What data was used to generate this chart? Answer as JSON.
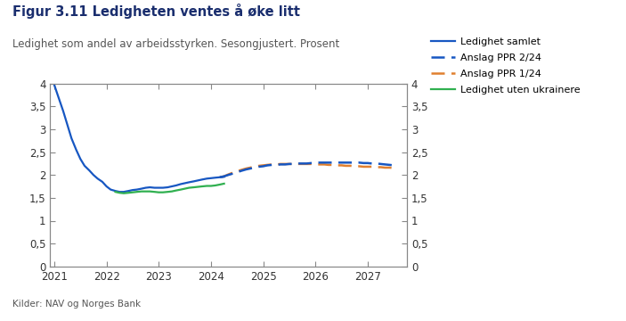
{
  "title": "Figur 3.11 Ledigheten ventes å øke litt",
  "subtitle": "Ledighet som andel av arbeidsstyrken. Sesongjustert. Prosent",
  "source": "Kilder: NAV og Norges Bank",
  "ylim": [
    0,
    4
  ],
  "yticks": [
    0,
    0.5,
    1,
    1.5,
    2,
    2.5,
    3,
    3.5,
    4
  ],
  "ytick_labels": [
    "0",
    "0,5",
    "1",
    "1,5",
    "2",
    "2,5",
    "3",
    "3,5",
    "4"
  ],
  "xlim_start": 2020.92,
  "xlim_end": 2027.75,
  "xtick_positions": [
    2021,
    2022,
    2023,
    2024,
    2025,
    2026,
    2027
  ],
  "ledighet_samlet_x": [
    2021.0,
    2021.08,
    2021.17,
    2021.25,
    2021.33,
    2021.42,
    2021.5,
    2021.58,
    2021.67,
    2021.75,
    2021.83,
    2021.92,
    2022.0,
    2022.08,
    2022.17,
    2022.25,
    2022.33,
    2022.42,
    2022.5,
    2022.58,
    2022.67,
    2022.75,
    2022.83,
    2022.92,
    2023.0,
    2023.08,
    2023.17,
    2023.25,
    2023.33,
    2023.42,
    2023.5,
    2023.58,
    2023.67,
    2023.75,
    2023.83,
    2023.92,
    2024.0,
    2024.08,
    2024.17,
    2024.25
  ],
  "ledighet_samlet_y": [
    3.97,
    3.7,
    3.4,
    3.1,
    2.8,
    2.55,
    2.35,
    2.2,
    2.1,
    2.0,
    1.92,
    1.85,
    1.75,
    1.68,
    1.65,
    1.63,
    1.63,
    1.65,
    1.67,
    1.68,
    1.7,
    1.72,
    1.73,
    1.72,
    1.72,
    1.72,
    1.73,
    1.75,
    1.77,
    1.8,
    1.82,
    1.84,
    1.86,
    1.88,
    1.9,
    1.92,
    1.93,
    1.94,
    1.95,
    1.96
  ],
  "anslag_ppr224_x": [
    2024.17,
    2024.25,
    2024.33,
    2024.42,
    2024.5,
    2024.58,
    2024.67,
    2024.75,
    2024.83,
    2024.92,
    2025.0,
    2025.08,
    2025.17,
    2025.25,
    2025.33,
    2025.42,
    2025.5,
    2025.58,
    2025.67,
    2025.75,
    2025.83,
    2025.92,
    2026.0,
    2026.08,
    2026.17,
    2026.25,
    2026.33,
    2026.42,
    2026.5,
    2026.58,
    2026.67,
    2026.75,
    2026.83,
    2026.92,
    2027.0,
    2027.08,
    2027.17,
    2027.25,
    2027.33,
    2027.42,
    2027.5
  ],
  "anslag_ppr224_y": [
    1.95,
    1.97,
    2.0,
    2.03,
    2.06,
    2.09,
    2.12,
    2.14,
    2.16,
    2.18,
    2.19,
    2.21,
    2.22,
    2.22,
    2.23,
    2.23,
    2.24,
    2.24,
    2.25,
    2.25,
    2.25,
    2.26,
    2.26,
    2.27,
    2.27,
    2.27,
    2.27,
    2.27,
    2.27,
    2.27,
    2.27,
    2.27,
    2.27,
    2.26,
    2.26,
    2.25,
    2.25,
    2.24,
    2.23,
    2.22,
    2.21
  ],
  "anslag_ppr124_x": [
    2024.17,
    2024.25,
    2024.33,
    2024.42,
    2024.5,
    2024.58,
    2024.67,
    2024.75,
    2024.83,
    2024.92,
    2025.0,
    2025.08,
    2025.17,
    2025.25,
    2025.33,
    2025.42,
    2025.5,
    2025.58,
    2025.67,
    2025.75,
    2025.83,
    2025.92,
    2026.0,
    2026.08,
    2026.17,
    2026.25,
    2026.33,
    2026.42,
    2026.5,
    2026.58,
    2026.67,
    2026.75,
    2026.83,
    2026.92,
    2027.0,
    2027.08,
    2027.17,
    2027.25,
    2027.33,
    2027.42,
    2027.5
  ],
  "anslag_ppr124_y": [
    1.95,
    1.97,
    2.01,
    2.05,
    2.08,
    2.11,
    2.14,
    2.16,
    2.18,
    2.2,
    2.21,
    2.22,
    2.23,
    2.23,
    2.24,
    2.24,
    2.24,
    2.24,
    2.24,
    2.24,
    2.24,
    2.24,
    2.23,
    2.23,
    2.23,
    2.22,
    2.22,
    2.21,
    2.21,
    2.2,
    2.2,
    2.19,
    2.19,
    2.18,
    2.18,
    2.18,
    2.17,
    2.17,
    2.16,
    2.16,
    2.15
  ],
  "ledighet_uten_ukrainere_x": [
    2022.17,
    2022.25,
    2022.33,
    2022.42,
    2022.5,
    2022.58,
    2022.67,
    2022.75,
    2022.83,
    2022.92,
    2023.0,
    2023.08,
    2023.17,
    2023.25,
    2023.33,
    2023.42,
    2023.5,
    2023.58,
    2023.67,
    2023.75,
    2023.83,
    2023.92,
    2024.0,
    2024.08,
    2024.17,
    2024.25
  ],
  "ledighet_uten_ukrainere_y": [
    1.63,
    1.61,
    1.6,
    1.61,
    1.62,
    1.63,
    1.64,
    1.64,
    1.64,
    1.63,
    1.62,
    1.62,
    1.63,
    1.64,
    1.66,
    1.68,
    1.7,
    1.72,
    1.73,
    1.74,
    1.75,
    1.76,
    1.76,
    1.77,
    1.79,
    1.81
  ],
  "color_samlet": "#1757c2",
  "color_ppr224": "#1757c2",
  "color_ppr124": "#e08030",
  "color_ukrainere": "#30b050",
  "title_color": "#1a2e6e",
  "subtitle_color": "#555555",
  "source_color": "#555555",
  "spine_color": "#888888",
  "tick_color": "#888888",
  "background_color": "#ffffff",
  "legend_labels": [
    "Ledighet samlet",
    "Anslag PPR 2/24",
    "Anslag PPR 1/24",
    "Ledighet uten ukrainere"
  ]
}
